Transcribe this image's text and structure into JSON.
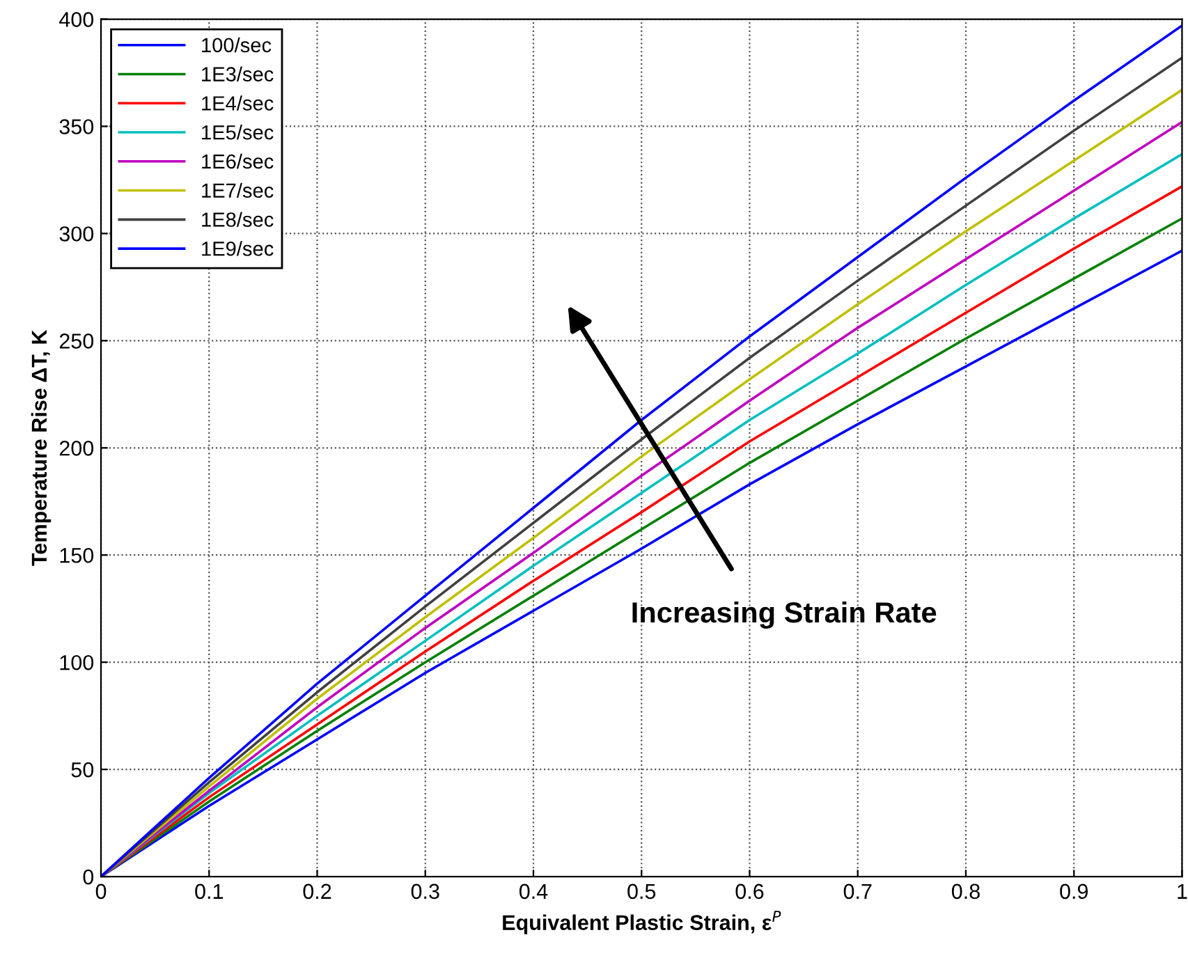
{
  "chart_data": {
    "type": "line",
    "xlabel": "Equivalent Plastic Strain, ε$^{P}$",
    "ylabel": "Temperature Rise ΔT, K",
    "x": [
      0,
      0.1,
      0.2,
      0.3,
      0.4,
      0.5,
      0.6,
      0.7,
      0.8,
      0.9,
      1
    ],
    "series": [
      {
        "name": "100/sec",
        "color": "#0000ff",
        "values": [
          0,
          33,
          64,
          95,
          124,
          153,
          183,
          211,
          238,
          265,
          292
        ]
      },
      {
        "name": "1E3/sec",
        "color": "#008000",
        "values": [
          0,
          35,
          68,
          100,
          131,
          162,
          193,
          222,
          251,
          279,
          307
        ]
      },
      {
        "name": "1E4/sec",
        "color": "#ff0000",
        "values": [
          0,
          37,
          71,
          105,
          138,
          170,
          203,
          233,
          263,
          293,
          322
        ]
      },
      {
        "name": "1E5/sec",
        "color": "#00bfbf",
        "values": [
          0,
          39,
          75,
          110,
          145,
          179,
          213,
          244,
          276,
          307,
          337
        ]
      },
      {
        "name": "1E6/sec",
        "color": "#bf00bf",
        "values": [
          0,
          40,
          79,
          116,
          151,
          187,
          222,
          256,
          288,
          320,
          352
        ]
      },
      {
        "name": "1E7/sec",
        "color": "#bfbf00",
        "values": [
          0,
          42,
          83,
          121,
          158,
          196,
          232,
          267,
          301,
          334,
          367
        ]
      },
      {
        "name": "1E8/sec",
        "color": "#404040",
        "values": [
          0,
          44,
          86,
          126,
          165,
          204,
          242,
          278,
          313,
          348,
          382
        ]
      },
      {
        "name": "1E9/sec",
        "color": "#0000ff",
        "values": [
          0,
          46,
          90,
          131,
          172,
          213,
          252,
          289,
          326,
          362,
          397
        ]
      }
    ],
    "xlim": [
      0,
      1
    ],
    "xticks": [
      0,
      0.1,
      0.2,
      0.3,
      0.4,
      0.5,
      0.6,
      0.7,
      0.8,
      0.9,
      1
    ],
    "ylim": [
      0,
      400
    ],
    "yticks": [
      0,
      50,
      100,
      150,
      200,
      250,
      300,
      350,
      400
    ],
    "annotations": [
      "Increasing Strain Rate"
    ],
    "grid": true,
    "legend": "top left",
    "marker": "none",
    "line_style": "solid"
  }
}
